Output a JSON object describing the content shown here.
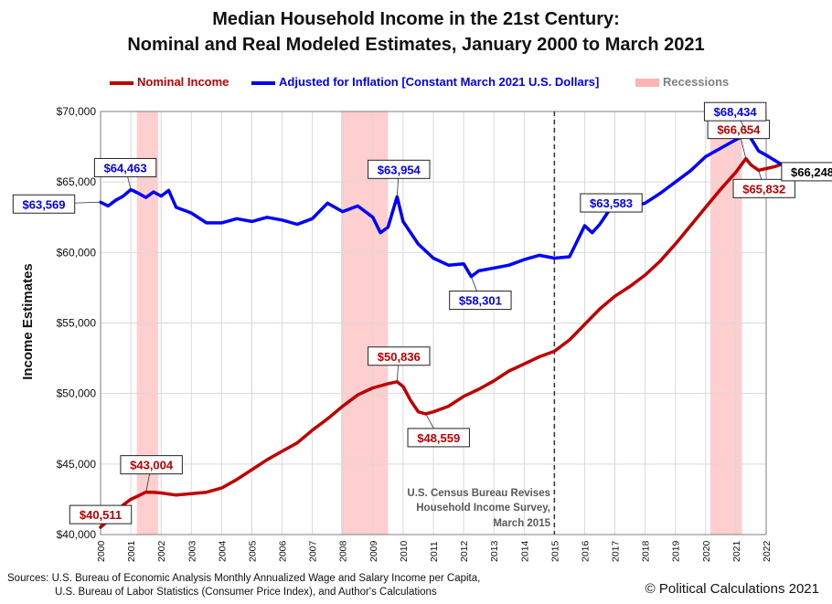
{
  "chart_data": {
    "type": "line",
    "title": "Median Household Income in the 21st Century:",
    "subtitle": "Nominal and Real Modeled Estimates, January 2000 to March 2021",
    "ylabel": "Income Estimates",
    "xlabel": "",
    "xlim": [
      2000,
      2022
    ],
    "ylim": [
      40000,
      70000
    ],
    "grid": true,
    "legend_placement": "top-center",
    "y_ticks": [
      "$40,000",
      "$45,000",
      "$50,000",
      "$55,000",
      "$60,000",
      "$65,000",
      "$70,000"
    ],
    "x_ticks": [
      "2000",
      "2001",
      "2002",
      "2003",
      "2004",
      "2005",
      "2006",
      "2007",
      "2008",
      "2009",
      "2010",
      "2011",
      "2012",
      "2013",
      "2014",
      "2015",
      "2016",
      "2017",
      "2018",
      "2019",
      "2020",
      "2021",
      "2022"
    ],
    "legend": [
      {
        "label": "Nominal Income",
        "color": "#c00000"
      },
      {
        "label": "Adjusted for Inflation [Constant March 2021 U.S. Dollars]",
        "color": "#0000ff"
      },
      {
        "label": "Recessions",
        "color": "#ffb3b3"
      }
    ],
    "recessions": [
      [
        2001.2,
        2001.9
      ],
      [
        2007.95,
        2009.5
      ],
      [
        2020.15,
        2021.2
      ]
    ],
    "series": [
      {
        "name": "Nominal Income",
        "color": "#c00000",
        "points": [
          [
            2000.0,
            40511
          ],
          [
            2000.25,
            41000
          ],
          [
            2000.5,
            41600
          ],
          [
            2000.75,
            42100
          ],
          [
            2001.0,
            42500
          ],
          [
            2001.25,
            42750
          ],
          [
            2001.5,
            43004
          ],
          [
            2001.75,
            43000
          ],
          [
            2002.0,
            42950
          ],
          [
            2002.5,
            42800
          ],
          [
            2003.0,
            42900
          ],
          [
            2003.5,
            43000
          ],
          [
            2004.0,
            43300
          ],
          [
            2004.5,
            43900
          ],
          [
            2005.0,
            44600
          ],
          [
            2005.5,
            45300
          ],
          [
            2006.0,
            45900
          ],
          [
            2006.5,
            46500
          ],
          [
            2007.0,
            47400
          ],
          [
            2007.5,
            48200
          ],
          [
            2008.0,
            49100
          ],
          [
            2008.5,
            49900
          ],
          [
            2009.0,
            50400
          ],
          [
            2009.5,
            50700
          ],
          [
            2009.8,
            50836
          ],
          [
            2010.0,
            50500
          ],
          [
            2010.25,
            49500
          ],
          [
            2010.5,
            48700
          ],
          [
            2010.75,
            48559
          ],
          [
            2011.0,
            48700
          ],
          [
            2011.5,
            49100
          ],
          [
            2012.0,
            49800
          ],
          [
            2012.5,
            50300
          ],
          [
            2013.0,
            50900
          ],
          [
            2013.5,
            51600
          ],
          [
            2014.0,
            52100
          ],
          [
            2014.5,
            52600
          ],
          [
            2015.0,
            53000
          ],
          [
            2015.5,
            53800
          ],
          [
            2016.0,
            54900
          ],
          [
            2016.5,
            56000
          ],
          [
            2017.0,
            56900
          ],
          [
            2017.5,
            57600
          ],
          [
            2018.0,
            58400
          ],
          [
            2018.5,
            59400
          ],
          [
            2019.0,
            60600
          ],
          [
            2019.5,
            61900
          ],
          [
            2020.0,
            63200
          ],
          [
            2020.5,
            64500
          ],
          [
            2021.0,
            65700
          ],
          [
            2021.33,
            66654
          ],
          [
            2021.5,
            66200
          ],
          [
            2021.75,
            65832
          ],
          [
            2022.0,
            65950
          ],
          [
            2022.3,
            66100
          ],
          [
            2022.5,
            66248
          ]
        ]
      },
      {
        "name": "Adjusted for Inflation [Constant March 2021 U.S. Dollars]",
        "color": "#0000ff",
        "points": [
          [
            2000.0,
            63569
          ],
          [
            2000.25,
            63300
          ],
          [
            2000.5,
            63700
          ],
          [
            2000.75,
            64000
          ],
          [
            2001.0,
            64463
          ],
          [
            2001.25,
            64200
          ],
          [
            2001.5,
            63900
          ],
          [
            2001.75,
            64300
          ],
          [
            2002.0,
            64000
          ],
          [
            2002.25,
            64400
          ],
          [
            2002.5,
            63200
          ],
          [
            2003.0,
            62800
          ],
          [
            2003.5,
            62100
          ],
          [
            2004.0,
            62100
          ],
          [
            2004.5,
            62400
          ],
          [
            2005.0,
            62200
          ],
          [
            2005.5,
            62500
          ],
          [
            2006.0,
            62300
          ],
          [
            2006.5,
            62000
          ],
          [
            2007.0,
            62400
          ],
          [
            2007.5,
            63500
          ],
          [
            2008.0,
            62900
          ],
          [
            2008.5,
            63300
          ],
          [
            2009.0,
            62500
          ],
          [
            2009.25,
            61400
          ],
          [
            2009.5,
            61800
          ],
          [
            2009.8,
            63954
          ],
          [
            2010.0,
            62200
          ],
          [
            2010.5,
            60600
          ],
          [
            2011.0,
            59600
          ],
          [
            2011.5,
            59100
          ],
          [
            2012.0,
            59200
          ],
          [
            2012.25,
            58301
          ],
          [
            2012.5,
            58700
          ],
          [
            2013.0,
            58900
          ],
          [
            2013.5,
            59100
          ],
          [
            2014.0,
            59500
          ],
          [
            2014.5,
            59800
          ],
          [
            2015.0,
            59600
          ],
          [
            2015.5,
            59700
          ],
          [
            2016.0,
            61900
          ],
          [
            2016.25,
            61400
          ],
          [
            2016.5,
            62000
          ],
          [
            2017.0,
            63583
          ],
          [
            2017.5,
            63200
          ],
          [
            2018.0,
            63500
          ],
          [
            2018.5,
            64200
          ],
          [
            2019.0,
            65000
          ],
          [
            2019.5,
            65800
          ],
          [
            2020.0,
            66800
          ],
          [
            2020.5,
            67400
          ],
          [
            2021.0,
            68000
          ],
          [
            2021.4,
            68434
          ],
          [
            2021.75,
            67200
          ],
          [
            2022.0,
            66900
          ],
          [
            2022.5,
            66248
          ]
        ]
      }
    ],
    "annotations": [
      {
        "text": "$40,511",
        "x": 2000.0,
        "y": 40511,
        "series": 0
      },
      {
        "text": "$43,004",
        "x": 2001.5,
        "y": 43004,
        "series": 0
      },
      {
        "text": "$50,836",
        "x": 2009.8,
        "y": 50836,
        "series": 0
      },
      {
        "text": "$48,559",
        "x": 2010.75,
        "y": 48559,
        "series": 0
      },
      {
        "text": "$66,654",
        "x": 2021.33,
        "y": 66654,
        "series": 0
      },
      {
        "text": "$65,832",
        "x": 2021.75,
        "y": 65832,
        "series": 0
      },
      {
        "text": "$63,569",
        "x": 2000.0,
        "y": 63569,
        "series": 1
      },
      {
        "text": "$64,463",
        "x": 2001.0,
        "y": 64463,
        "series": 1
      },
      {
        "text": "$63,954",
        "x": 2009.8,
        "y": 63954,
        "series": 1
      },
      {
        "text": "$58,301",
        "x": 2012.25,
        "y": 58301,
        "series": 1
      },
      {
        "text": "$63,583",
        "x": 2017.0,
        "y": 63583,
        "series": 1
      },
      {
        "text": "$68,434",
        "x": 2021.4,
        "y": 68434,
        "series": 1
      },
      {
        "text": "$66,248",
        "x": 2022.5,
        "y": 66248,
        "series": 2
      }
    ],
    "revision_note": {
      "x": 2017.0,
      "lines": [
        "U.S. Census Bureau Revises",
        "Household Income Survey,",
        "March 2015"
      ]
    }
  },
  "footer": {
    "source_line1": "Sources: U.S. Bureau of Economic Analysis Monthly Annualized Wage and Salary Income per Capita,",
    "source_line2": "U.S. Bureau of Labor Statistics (Consumer Price Index), and Author's Calculations",
    "copyright": "© Political Calculations 2021"
  }
}
